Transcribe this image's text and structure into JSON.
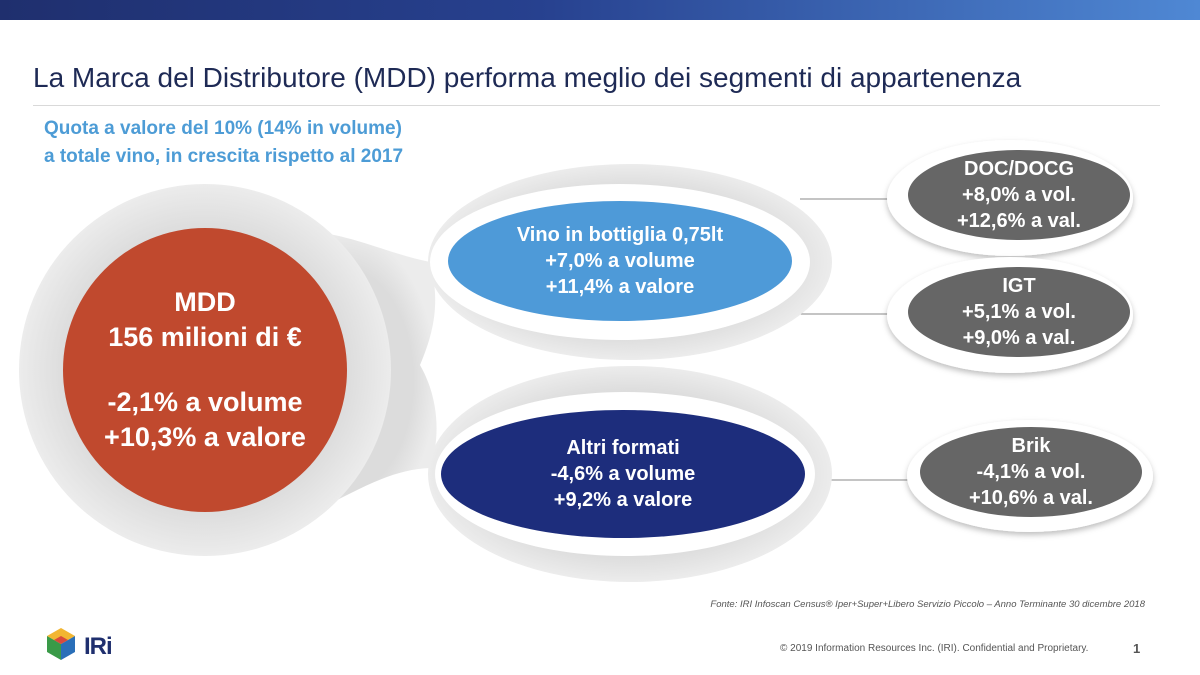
{
  "title": "La Marca del Distributore (MDD) performa meglio dei segmenti di appartenenza",
  "subtitle": {
    "line1": "Quota a valore del 10% (14% in volume)",
    "line2": "a totale vino, in crescita rispetto al 2017"
  },
  "mdd": {
    "label": "MDD",
    "value": "156 milioni di €",
    "volume": "-2,1% a volume",
    "valore": "+10,3% a valore"
  },
  "bottiglia": {
    "label": "Vino in bottiglia 0,75lt",
    "volume": "+7,0% a volume",
    "valore": "+11,4% a valore"
  },
  "altri": {
    "label": "Altri formati",
    "volume": "-4,6% a volume",
    "valore": "+9,2% a valore"
  },
  "doc": {
    "label": "DOC/DOCG",
    "vol": "+8,0% a vol.",
    "val": "+12,6% a val."
  },
  "igt": {
    "label": "IGT",
    "vol": "+5,1% a vol.",
    "val": "+9,0% a val."
  },
  "brik": {
    "label": "Brik",
    "vol": "-4,1% a vol.",
    "val": "+10,6% a val."
  },
  "footer": {
    "source": "Fonte: IRI  Infoscan Census®  Iper+Super+Libero Servizio Piccolo – Anno Terminante 30 dicembre 2018",
    "brand": "IRi",
    "copyright": "© 2019 Information Resources Inc. (IRI). Confidential and Proprietary.",
    "page": "1"
  },
  "colors": {
    "title": "#1e2a55",
    "subtitle": "#4d9cd6",
    "mdd": "#c0492e",
    "bottiglia": "#4e9ad8",
    "altri": "#1d2d7c",
    "small_nodes": "#666666",
    "halo": "#e4e4e4"
  }
}
